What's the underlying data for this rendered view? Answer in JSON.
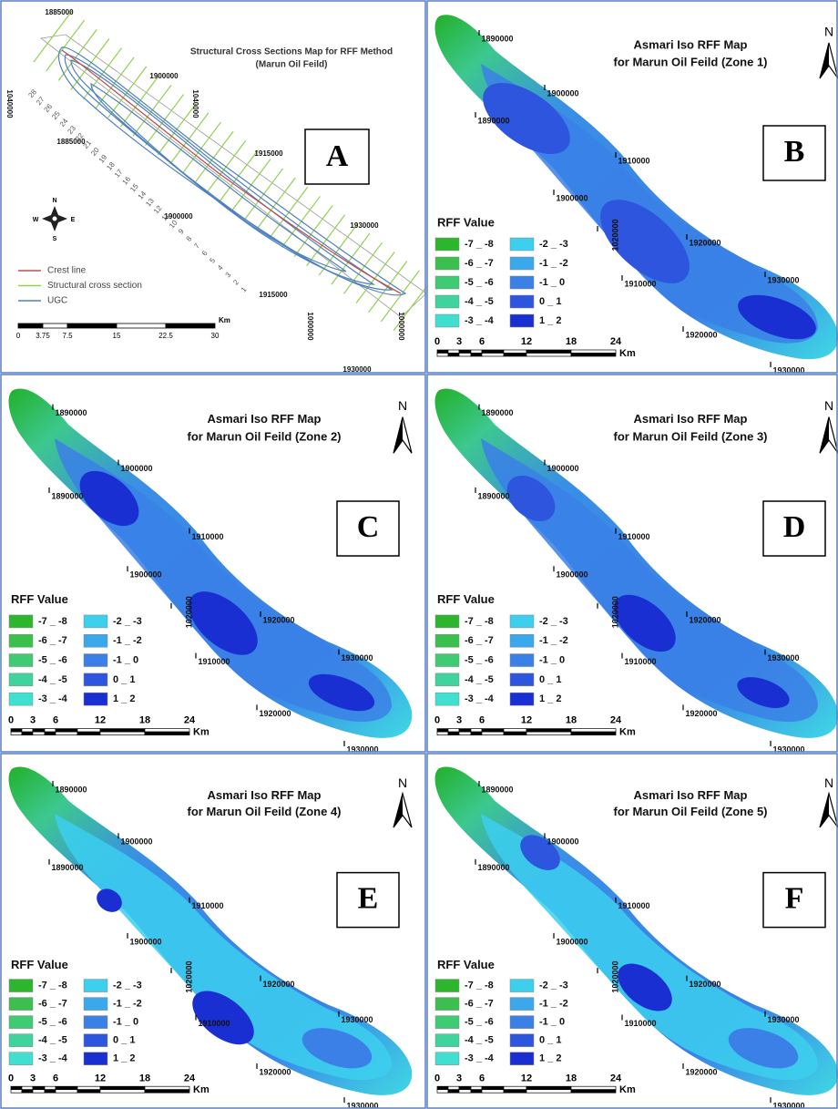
{
  "panels": [
    {
      "letter": "A",
      "title": "Structural Cross Sections Map for RFF Method",
      "subtitle": "(Marun Oil Feild)",
      "coordinate_labels": [
        "1885000",
        "1900000",
        "1040000",
        "1040000",
        "1885000",
        "1915000",
        "1900000",
        "1930000",
        "1915000",
        "1000000",
        "1000000",
        "1930000"
      ],
      "compass": [
        "N",
        "E",
        "S",
        "W"
      ],
      "legend": [
        {
          "label": "Crest line",
          "color": "#c0504d"
        },
        {
          "label": "Structural cross section",
          "color": "#92d050"
        },
        {
          "label": "UGC",
          "color": "#4f81bd"
        }
      ],
      "section_numbers": [
        "1",
        "2",
        "3",
        "4",
        "5",
        "6",
        "7",
        "8",
        "9",
        "10",
        "11",
        "12",
        "13",
        "14",
        "15",
        "16",
        "17",
        "18",
        "19",
        "20",
        "21",
        "22",
        "23",
        "24",
        "25",
        "26",
        "27",
        "28"
      ],
      "scale_labels": [
        "0",
        "3.75",
        "7.5",
        "15",
        "22.5",
        "30"
      ],
      "scale_unit": "Km"
    },
    {
      "letter": "B",
      "title": "Asmari Iso RFF Map",
      "subtitle": "for Marun Oil Feild (Zone 1)",
      "north": "N",
      "coordinate_labels": [
        "1890000",
        "1900000",
        "1890000",
        "1910000",
        "1900000",
        "1020000",
        "1920000",
        "1910000",
        "1930000",
        "1920000",
        "1930000"
      ],
      "legend_title": "RFF Value",
      "legend": [
        {
          "label": "-7 _ -8",
          "color": "#2db52d"
        },
        {
          "label": "-6 _ -7",
          "color": "#3cbf4e"
        },
        {
          "label": "-5 _ -6",
          "color": "#3fca74"
        },
        {
          "label": "-4 _ -5",
          "color": "#40d39c"
        },
        {
          "label": "-3 _ -4",
          "color": "#3fe0d0"
        },
        {
          "label": "-2 _ -3",
          "color": "#3ccfee"
        },
        {
          "label": "-1 _ -2",
          "color": "#3aa8ea"
        },
        {
          "label": "-1 _ 0",
          "color": "#3a80e6"
        },
        {
          "label": "0 _ 1",
          "color": "#2d55de"
        },
        {
          "label": "1 _ 2",
          "color": "#1a2fd2"
        }
      ],
      "scale_labels": [
        "0",
        "3",
        "6",
        "12",
        "18",
        "24"
      ],
      "scale_unit": "Km"
    },
    {
      "letter": "C",
      "title": "Asmari Iso RFF Map",
      "subtitle": "for Marun Oil Feild (Zone 2)",
      "north": "N",
      "coordinate_labels": [
        "1890000",
        "1900000",
        "1890000",
        "1910000",
        "1900000",
        "1020000",
        "1920000",
        "1910000",
        "1930000",
        "1920000",
        "1930000"
      ],
      "legend_title": "RFF Value",
      "legend": [
        {
          "label": "-7 _ -8",
          "color": "#2db52d"
        },
        {
          "label": "-6 _ -7",
          "color": "#3cbf4e"
        },
        {
          "label": "-5 _ -6",
          "color": "#3fca74"
        },
        {
          "label": "-4 _ -5",
          "color": "#40d39c"
        },
        {
          "label": "-3 _ -4",
          "color": "#3fe0d0"
        },
        {
          "label": "-2 _ -3",
          "color": "#3ccfee"
        },
        {
          "label": "-1 _ -2",
          "color": "#3aa8ea"
        },
        {
          "label": "-1 _ 0",
          "color": "#3a80e6"
        },
        {
          "label": "0 _ 1",
          "color": "#2d55de"
        },
        {
          "label": "1 _ 2",
          "color": "#1a2fd2"
        }
      ],
      "scale_labels": [
        "0",
        "3",
        "6",
        "12",
        "18",
        "24"
      ],
      "scale_unit": "Km"
    },
    {
      "letter": "D",
      "title": "Asmari Iso RFF Map",
      "subtitle": "for Marun Oil Feild (Zone 3)",
      "north": "N",
      "coordinate_labels": [
        "1890000",
        "1900000",
        "1890000",
        "1910000",
        "1900000",
        "1020000",
        "1920000",
        "1910000",
        "1930000",
        "1920000",
        "1930000"
      ],
      "legend_title": "RFF Value",
      "legend": [
        {
          "label": "-7 _ -8",
          "color": "#2db52d"
        },
        {
          "label": "-6 _ -7",
          "color": "#3cbf4e"
        },
        {
          "label": "-5 _ -6",
          "color": "#3fca74"
        },
        {
          "label": "-4 _ -5",
          "color": "#40d39c"
        },
        {
          "label": "-3 _ -4",
          "color": "#3fe0d0"
        },
        {
          "label": "-2 _ -3",
          "color": "#3ccfee"
        },
        {
          "label": "-1 _ -2",
          "color": "#3aa8ea"
        },
        {
          "label": "-1 _ 0",
          "color": "#3a80e6"
        },
        {
          "label": "0 _ 1",
          "color": "#2d55de"
        },
        {
          "label": "1 _ 2",
          "color": "#1a2fd2"
        }
      ],
      "scale_labels": [
        "0",
        "3",
        "6",
        "12",
        "18",
        "24"
      ],
      "scale_unit": "Km"
    },
    {
      "letter": "E",
      "title": "Asmari Iso RFF Map",
      "subtitle": "for Marun Oil Feild (Zone 4)",
      "north": "N",
      "coordinate_labels": [
        "1890000",
        "1900000",
        "1890000",
        "1910000",
        "1900000",
        "1020000",
        "1920000",
        "1910000",
        "1930000",
        "1920000",
        "1930000"
      ],
      "legend_title": "RFF Value",
      "legend": [
        {
          "label": "-7 _ -8",
          "color": "#2db52d"
        },
        {
          "label": "-6 _ -7",
          "color": "#3cbf4e"
        },
        {
          "label": "-5 _ -6",
          "color": "#3fca74"
        },
        {
          "label": "-4 _ -5",
          "color": "#40d39c"
        },
        {
          "label": "-3 _ -4",
          "color": "#3fe0d0"
        },
        {
          "label": "-2 _ -3",
          "color": "#3ccfee"
        },
        {
          "label": "-1 _ -2",
          "color": "#3aa8ea"
        },
        {
          "label": "-1 _ 0",
          "color": "#3a80e6"
        },
        {
          "label": "0 _ 1",
          "color": "#2d55de"
        },
        {
          "label": "1 _ 2",
          "color": "#1a2fd2"
        }
      ],
      "scale_labels": [
        "0",
        "3",
        "6",
        "12",
        "18",
        "24"
      ],
      "scale_unit": "Km"
    },
    {
      "letter": "F",
      "title": "Asmari Iso RFF Map",
      "subtitle": "for Marun Oil Feild (Zone 5)",
      "north": "N",
      "coordinate_labels": [
        "1890000",
        "1900000",
        "1890000",
        "1910000",
        "1900000",
        "1020000",
        "1920000",
        "1910000",
        "1930000",
        "1920000",
        "1930000"
      ],
      "legend_title": "RFF Value",
      "legend": [
        {
          "label": "-7 _ -8",
          "color": "#2db52d"
        },
        {
          "label": "-6 _ -7",
          "color": "#3cbf4e"
        },
        {
          "label": "-5 _ -6",
          "color": "#3fca74"
        },
        {
          "label": "-4 _ -5",
          "color": "#40d39c"
        },
        {
          "label": "-3 _ -4",
          "color": "#3fe0d0"
        },
        {
          "label": "-2 _ -3",
          "color": "#3ccfee"
        },
        {
          "label": "-1 _ -2",
          "color": "#3aa8ea"
        },
        {
          "label": "-1 _ 0",
          "color": "#3a80e6"
        },
        {
          "label": "0 _ 1",
          "color": "#2d55de"
        },
        {
          "label": "1 _ 2",
          "color": "#1a2fd2"
        }
      ],
      "scale_labels": [
        "0",
        "3",
        "6",
        "12",
        "18",
        "24"
      ],
      "scale_unit": "Km"
    }
  ]
}
